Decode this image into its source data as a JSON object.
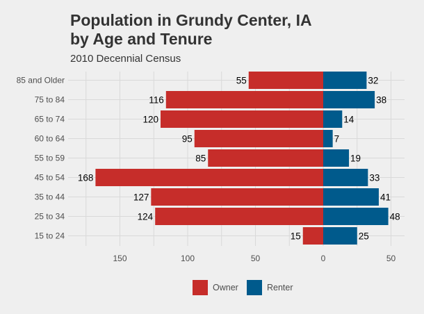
{
  "chart_data": {
    "type": "bar",
    "orientation": "horizontal-diverging",
    "title_lines": [
      "Population in Grundy Center, IA",
      "by Age and Tenure"
    ],
    "subtitle": "2010 Decennial Census",
    "categories": [
      "85 and Older",
      "75 to 84",
      "65 to 74",
      "60 to 64",
      "55 to 59",
      "45 to 54",
      "35 to 44",
      "25 to 34",
      "15 to 24"
    ],
    "series": [
      {
        "name": "Owner",
        "color": "#c62d2a",
        "direction": "left",
        "values": [
          55,
          116,
          120,
          95,
          85,
          168,
          127,
          124,
          15
        ]
      },
      {
        "name": "Renter",
        "color": "#005a8c",
        "direction": "right",
        "values": [
          32,
          38,
          14,
          7,
          19,
          33,
          41,
          48,
          25
        ]
      }
    ],
    "xticks": [
      {
        "value": -150,
        "label": "150"
      },
      {
        "value": -100,
        "label": "100"
      },
      {
        "value": -50,
        "label": "50"
      },
      {
        "value": 0,
        "label": "0"
      },
      {
        "value": 50,
        "label": "50"
      }
    ],
    "xlim": [
      -180,
      52
    ],
    "grid": true,
    "legend_position": "bottom"
  }
}
